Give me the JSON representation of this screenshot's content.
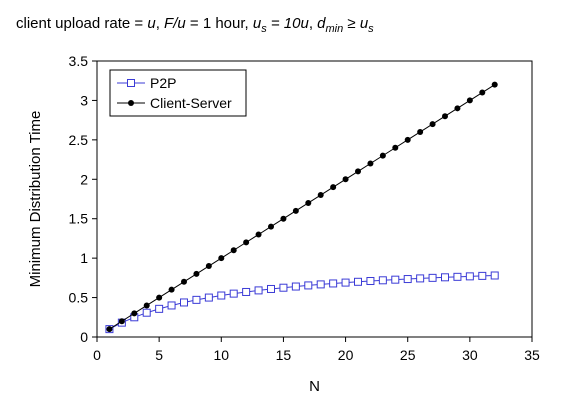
{
  "caption": {
    "parts": [
      {
        "text": "client upload rate = ",
        "style": "normal"
      },
      {
        "text": "u",
        "style": "italic"
      },
      {
        "text": ",  ",
        "style": "normal"
      },
      {
        "text": "F/u",
        "style": "italic"
      },
      {
        "text": " = 1 hour,  ",
        "style": "normal"
      },
      {
        "text": "u",
        "style": "italic"
      },
      {
        "text": "s",
        "style": "italic-sub"
      },
      {
        "text": " = 10u",
        "style": "italic"
      },
      {
        "text": ",  ",
        "style": "normal"
      },
      {
        "text": "d",
        "style": "italic"
      },
      {
        "text": "min",
        "style": "italic-sub"
      },
      {
        "text": " ≥ ",
        "style": "italic"
      },
      {
        "text": "u",
        "style": "italic"
      },
      {
        "text": "s",
        "style": "italic-sub"
      }
    ]
  },
  "chart_data": {
    "type": "line",
    "xlabel": "N",
    "ylabel": "Minimum Distribution Time",
    "xlim": [
      0,
      35
    ],
    "ylim": [
      0,
      3.5
    ],
    "xticks": [
      0,
      5,
      10,
      15,
      20,
      25,
      30,
      35
    ],
    "yticks": [
      0,
      0.5,
      1,
      1.5,
      2,
      2.5,
      3,
      3.5
    ],
    "xtick_labels": [
      "0",
      "5",
      "10",
      "15",
      "20",
      "25",
      "30",
      "35"
    ],
    "ytick_labels": [
      "0",
      "0.5",
      "1",
      "1.5",
      "2",
      "2.5",
      "3",
      "3.5"
    ],
    "grid": false,
    "legend_position": "top-left",
    "x": [
      1,
      2,
      3,
      4,
      5,
      6,
      7,
      8,
      9,
      10,
      11,
      12,
      13,
      14,
      15,
      16,
      17,
      18,
      19,
      20,
      21,
      22,
      23,
      24,
      25,
      26,
      27,
      28,
      29,
      30,
      31,
      32
    ],
    "series": [
      {
        "name": "P2P",
        "marker": "open-square",
        "color": "#3b3bd6",
        "values": [
          0.1,
          0.182,
          0.25,
          0.308,
          0.357,
          0.4,
          0.438,
          0.471,
          0.5,
          0.526,
          0.55,
          0.571,
          0.591,
          0.609,
          0.625,
          0.64,
          0.654,
          0.667,
          0.679,
          0.69,
          0.7,
          0.71,
          0.719,
          0.727,
          0.735,
          0.743,
          0.75,
          0.757,
          0.763,
          0.769,
          0.775,
          0.78
        ]
      },
      {
        "name": "Client-Server",
        "marker": "filled-circle",
        "color": "#000000",
        "values": [
          0.1,
          0.2,
          0.3,
          0.4,
          0.5,
          0.6,
          0.7,
          0.8,
          0.9,
          1.0,
          1.1,
          1.2,
          1.3,
          1.4,
          1.5,
          1.6,
          1.7,
          1.8,
          1.9,
          2.0,
          2.1,
          2.2,
          2.3,
          2.4,
          2.5,
          2.6,
          2.7,
          2.8,
          2.9,
          3.0,
          3.1,
          3.2
        ]
      }
    ]
  }
}
